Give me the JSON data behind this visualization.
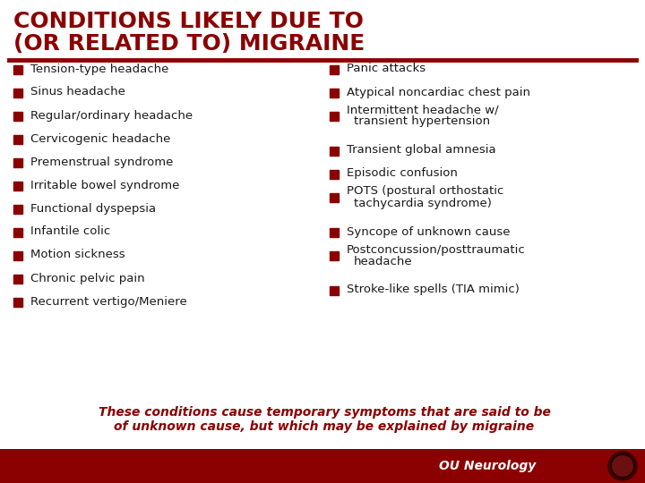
{
  "title_line1": "CONDITIONS LIKELY DUE TO",
  "title_line2": "(OR RELATED TO) MIGRAINE",
  "title_color": "#8B0000",
  "bg_color": "#FFFFFF",
  "bar_color": "#8B0000",
  "bullet_color": "#8B0000",
  "text_color": "#1a1a1a",
  "footer_color": "#8B0000",
  "left_items": [
    "Tension-type headache",
    "Sinus headache",
    "Regular/ordinary headache",
    "Cervicogenic headache",
    "Premenstrual syndrome",
    "Irritable bowel syndrome",
    "Functional dyspepsia",
    "Infantile colic",
    "Motion sickness",
    "Chronic pelvic pain",
    "Recurrent vertigo/Meniere"
  ],
  "right_items": [
    [
      "Panic attacks"
    ],
    [
      "Atypical noncardiac chest pain"
    ],
    [
      "Intermittent headache w/",
      "transient hypertension"
    ],
    [
      "Transient global amnesia"
    ],
    [
      "Episodic confusion"
    ],
    [
      "POTS (postural orthostatic",
      "tachycardia syndrome)"
    ],
    [
      "Syncope of unknown cause"
    ],
    [
      "Postconcussion/posttraumatic",
      "headache"
    ],
    [
      "Stroke-like spells (TIA mimic)"
    ]
  ],
  "italic_text1": "These conditions cause temporary symptoms that are said to be",
  "italic_text2": "of unknown cause, but which may be explained by migraine",
  "footer_label": "OU Neurology",
  "title_fontsize": 18,
  "body_fontsize": 9.5,
  "footer_fontsize": 10
}
